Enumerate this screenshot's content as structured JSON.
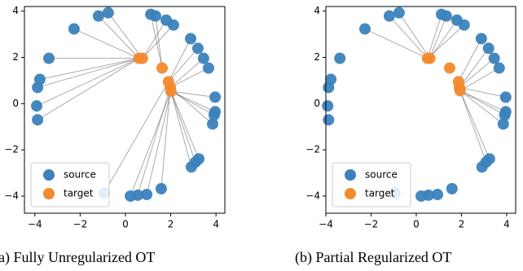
{
  "chart_data": [
    {
      "type": "scatter",
      "title": "(a) Fully Unregularized OT",
      "xlim": [
        -4.46,
        4.39
      ],
      "ylim": [
        -4.74,
        4.2
      ],
      "xticks": [
        {
          "value": -4,
          "label": "−4"
        },
        {
          "value": -2,
          "label": "−2"
        },
        0,
        2,
        4
      ],
      "yticks": [
        {
          "value": -4,
          "label": "−4"
        },
        {
          "value": -2,
          "label": "−2"
        },
        0,
        2,
        4
      ],
      "legend": "lower left",
      "series": [
        {
          "name": "source",
          "color": "#3b82bd",
          "x": [
            -1.19,
            -0.76,
            1.12,
            1.33,
            1.8,
            2.12,
            -2.27,
            -3.38,
            2.88,
            3.2,
            3.45,
            3.67,
            -3.78,
            -3.88,
            3.96,
            3.96,
            3.92,
            3.85,
            -3.92,
            -3.88,
            3.24,
            3.09,
            2.91,
            1.58,
            0.94,
            0.54,
            0.22,
            -0.94
          ],
          "y": [
            3.79,
            3.93,
            3.86,
            3.79,
            3.61,
            3.4,
            3.23,
            1.96,
            2.81,
            2.39,
            1.96,
            1.54,
            1.05,
            0.7,
            0.28,
            -0.35,
            -0.49,
            -0.88,
            -0.1,
            -0.7,
            -2.39,
            -2.53,
            -2.74,
            -3.68,
            -3.93,
            -3.96,
            -4.0,
            -3.86
          ]
        },
        {
          "name": "target",
          "color": "#f28a2e",
          "x": [
            0.6,
            0.75,
            1.62,
            1.9,
            1.98,
            2.01
          ],
          "y": [
            1.96,
            1.96,
            1.54,
            0.95,
            0.7,
            0.53
          ]
        }
      ],
      "assignment": [
        0,
        1,
        2,
        2,
        1,
        1,
        0,
        0,
        3,
        3,
        4,
        4,
        0,
        0,
        5,
        5,
        5,
        4,
        0,
        0,
        5,
        5,
        5,
        4,
        5,
        4,
        5,
        3
      ]
    },
    {
      "type": "scatter",
      "title": "(b) Partial Regularized OT",
      "xlim": [
        -4.0,
        4.4
      ],
      "ylim": [
        -4.74,
        4.2
      ],
      "xticks": [
        {
          "value": -4,
          "label": "−4"
        },
        {
          "value": -2,
          "label": "−2"
        },
        0,
        2,
        4
      ],
      "yticks": [
        {
          "value": -4,
          "label": "−4"
        },
        {
          "value": -2,
          "label": "−2"
        },
        0,
        2,
        4
      ],
      "legend": "lower left",
      "series": [
        {
          "name": "source",
          "color": "#3b82bd",
          "x": [
            -1.19,
            -0.76,
            1.12,
            1.33,
            1.8,
            2.12,
            -2.27,
            -3.38,
            2.88,
            3.2,
            3.45,
            3.67,
            -3.78,
            -3.88,
            3.96,
            3.96,
            3.92,
            3.85,
            -3.92,
            -3.88,
            3.24,
            3.09,
            2.91,
            1.58,
            0.94,
            0.54,
            0.22,
            -0.94
          ],
          "y": [
            3.79,
            3.93,
            3.86,
            3.79,
            3.61,
            3.4,
            3.23,
            1.96,
            2.81,
            2.39,
            1.96,
            1.54,
            1.05,
            0.7,
            0.28,
            -0.35,
            -0.49,
            -0.88,
            -0.1,
            -0.7,
            -2.39,
            -2.53,
            -2.74,
            -3.68,
            -3.93,
            -3.96,
            -4.0,
            -3.86
          ]
        },
        {
          "name": "target",
          "color": "#f28a2e",
          "x": [
            0.5,
            0.6,
            1.48,
            1.87,
            1.91,
            1.94
          ],
          "y": [
            1.96,
            1.96,
            1.54,
            0.95,
            0.7,
            0.56
          ]
        }
      ],
      "assignment": [
        0,
        1,
        0,
        1,
        1,
        0,
        0,
        null,
        3,
        4,
        4,
        5,
        null,
        null,
        4,
        5,
        5,
        5,
        null,
        null,
        5,
        5,
        null,
        null,
        null,
        null,
        null,
        null
      ]
    }
  ]
}
